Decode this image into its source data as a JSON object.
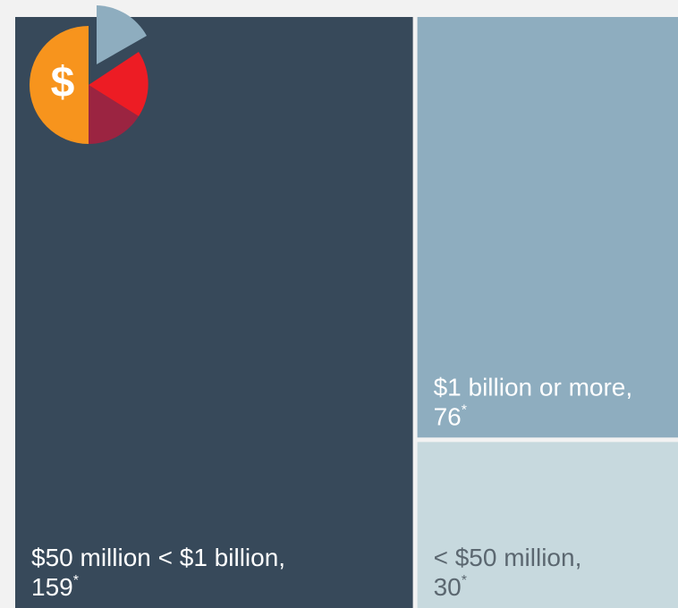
{
  "chart_data": {
    "type": "treemap",
    "categories": [
      "$50 million < $1 billion,",
      "$1 billion or more,",
      "< $50 million,"
    ],
    "values": [
      159,
      76,
      30
    ],
    "marker": "*",
    "colors": [
      "#37495a",
      "#8eadbf",
      "#c7d9de"
    ],
    "text_colors": [
      "#ffffff",
      "#ffffff",
      "#5b6770"
    ]
  }
}
